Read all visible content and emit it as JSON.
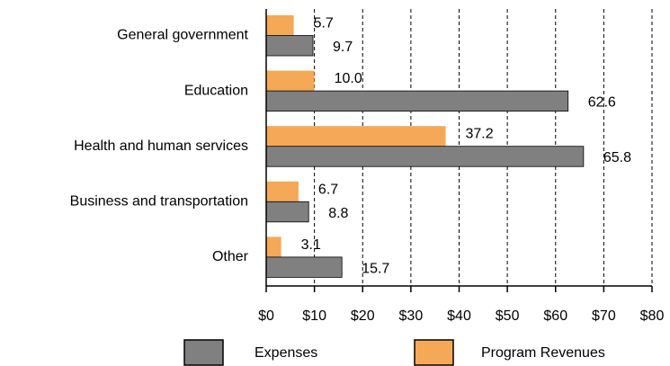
{
  "chart_data": {
    "type": "bar",
    "orientation": "horizontal",
    "categories": [
      "General government",
      "Education",
      "Health and human services",
      "Business and transportation",
      "Other"
    ],
    "series": [
      {
        "name": "Expenses",
        "color": "#808080",
        "values": [
          9.7,
          62.6,
          65.8,
          8.8,
          15.7
        ],
        "value_labels": [
          "9.7",
          "62.6",
          "65.8",
          "8.8",
          "15.7"
        ]
      },
      {
        "name": "Program Revenues",
        "color": "#f5a855",
        "values": [
          5.7,
          10.0,
          37.2,
          6.7,
          3.1
        ],
        "value_labels": [
          "5.7",
          "10.0",
          "37.2",
          "6.7",
          "3.1"
        ]
      }
    ],
    "xlim": [
      0,
      80
    ],
    "xticks": [
      {
        "value": 0,
        "label": "$0"
      },
      {
        "value": 10,
        "label": "$10"
      },
      {
        "value": 20,
        "label": "$20"
      },
      {
        "value": 30,
        "label": "$30"
      },
      {
        "value": 40,
        "label": "$40"
      },
      {
        "value": 50,
        "label": "$50"
      },
      {
        "value": 60,
        "label": "$60"
      },
      {
        "value": 70,
        "label": "$70"
      },
      {
        "value": 80,
        "label": "$80"
      }
    ],
    "grid": true
  }
}
